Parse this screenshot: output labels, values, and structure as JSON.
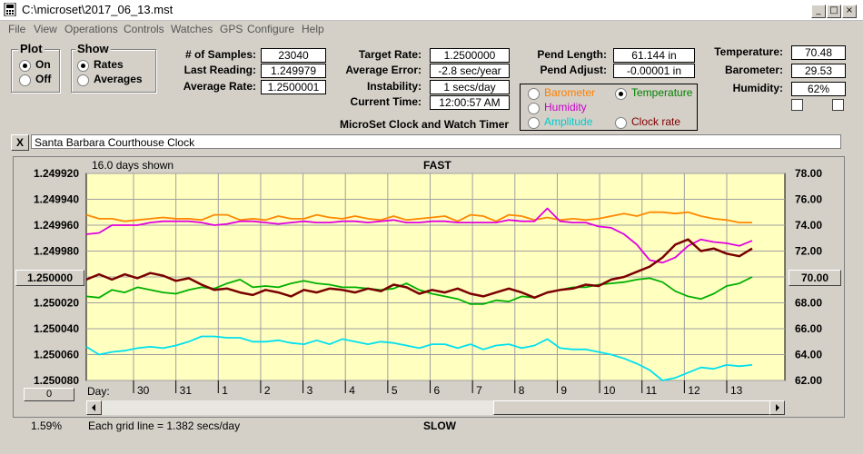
{
  "window": {
    "title": "C:\\microset\\2017_06_13.mst"
  },
  "menu": [
    "File",
    "View",
    "Operations",
    "Controls",
    "Watches",
    "GPS",
    "Configure",
    "Help"
  ],
  "plot_group": {
    "title": "Plot",
    "options": [
      "On",
      "Off"
    ],
    "selected": "On"
  },
  "show_group": {
    "title": "Show",
    "options": [
      "Rates",
      "Averages"
    ],
    "selected": "Rates"
  },
  "stats": {
    "samples_label": "# of Samples:",
    "samples": "23040",
    "last_label": "Last Reading:",
    "last": "1.249979",
    "avg_label": "Average Rate:",
    "avg": "1.2500001",
    "target_label": "Target Rate:",
    "target": "1.2500000",
    "err_label": "Average Error:",
    "err": "-2.8 sec/year",
    "inst_label": "Instability:",
    "inst": "1 secs/day",
    "time_label": "Current Time:",
    "time": "12:00:57 AM",
    "pend_len_label": "Pend Length:",
    "pend_len": "61.144 in",
    "pend_adj_label": "Pend Adjust:",
    "pend_adj": "-0.00001 in",
    "temp_label": "Temperature:",
    "temp": "70.48",
    "baro_label": "Barometer:",
    "baro": "29.53",
    "hum_label": "Humidity:",
    "hum": "62%"
  },
  "app_caption": "MicroSet Clock and Watch Timer",
  "overlay_group": {
    "options": [
      {
        "label": "Barometer",
        "color": "#ff8000",
        "selected": false
      },
      {
        "label": "Temperature",
        "color": "#008000",
        "selected": true
      },
      {
        "label": "Humidity",
        "color": "#cc00cc",
        "selected": false
      },
      {
        "label": "Clock rate",
        "color": "#800000",
        "selected": false
      },
      {
        "label": "Amplitude",
        "color": "#00cccc",
        "selected": false
      }
    ]
  },
  "note": {
    "close": "X",
    "text": "Santa Barbara Courthouse Clock"
  },
  "chart_data": {
    "type": "line",
    "title": "FAST",
    "bottom_title": "SLOW",
    "subtitle": "16.0 days shown",
    "grid_note": "Each grid line = 1.382 secs/day",
    "left_axis": {
      "ticks": [
        "1.249920",
        "1.249940",
        "1.249960",
        "1.249980",
        "1.250000",
        "1.250020",
        "1.250040",
        "1.250060",
        "1.250080"
      ],
      "range": [
        1.24992,
        1.25008
      ]
    },
    "right_axis": {
      "ticks": [
        "78.00",
        "76.00",
        "74.00",
        "72.00",
        "70.00",
        "68.00",
        "66.00",
        "64.00",
        "62.00"
      ],
      "range": [
        78,
        62
      ]
    },
    "center_left_button": "1.250000",
    "center_right_button": "70.00",
    "x_axis_label": "Day:",
    "x_ticks": [
      "30",
      "31",
      "1",
      "2",
      "3",
      "4",
      "5",
      "6",
      "7",
      "8",
      "9",
      "10",
      "11",
      "12",
      "13"
    ],
    "bottom_left_button": "0",
    "bottom_left_percent": "1.59%",
    "grid": true,
    "series": [
      {
        "color": "#ff8800",
        "values": [
          1.249952,
          1.249955,
          1.249955,
          1.249957,
          1.249956,
          1.249955,
          1.249954,
          1.249955,
          1.249955,
          1.249956,
          1.249952,
          1.249952,
          1.249956,
          1.249955,
          1.249956,
          1.249953,
          1.249955,
          1.249955,
          1.249952,
          1.249954,
          1.249955,
          1.249953,
          1.249955,
          1.249956,
          1.249953,
          1.249956,
          1.249955,
          1.249954,
          1.249953,
          1.249957,
          1.249952,
          1.249953,
          1.249957,
          1.249952,
          1.249953,
          1.249956,
          1.249954,
          1.249956,
          1.249955,
          1.249956,
          1.249955,
          1.249953,
          1.249951,
          1.249953,
          1.24995,
          1.24995,
          1.249951,
          1.24995,
          1.249953,
          1.249955,
          1.249956,
          1.249958,
          1.249958
        ]
      },
      {
        "color": "#e000e0",
        "values": [
          1.249967,
          1.249966,
          1.24996,
          1.24996,
          1.24996,
          1.249958,
          1.249957,
          1.249957,
          1.249957,
          1.249958,
          1.24996,
          1.249959,
          1.249957,
          1.249957,
          1.249958,
          1.249959,
          1.249958,
          1.249957,
          1.249958,
          1.249958,
          1.249957,
          1.249957,
          1.249958,
          1.249957,
          1.249956,
          1.249958,
          1.249958,
          1.249957,
          1.249957,
          1.249958,
          1.249958,
          1.249958,
          1.249958,
          1.249956,
          1.249957,
          1.249957,
          1.249947,
          1.249957,
          1.249958,
          1.249958,
          1.249961,
          1.249962,
          1.249967,
          1.249975,
          1.249987,
          1.249989,
          1.249985,
          1.249976,
          1.249971,
          1.249973,
          1.249974,
          1.249976,
          1.249972
        ]
      },
      {
        "color": "#00b000",
        "values": [
          1.250015,
          1.250016,
          1.25001,
          1.250012,
          1.250008,
          1.25001,
          1.250012,
          1.250013,
          1.25001,
          1.250008,
          1.250009,
          1.250005,
          1.250002,
          1.250008,
          1.250007,
          1.250008,
          1.250005,
          1.250003,
          1.250005,
          1.250006,
          1.250008,
          1.250008,
          1.250009,
          1.25001,
          1.250009,
          1.250005,
          1.25001,
          1.250013,
          1.250015,
          1.250017,
          1.250021,
          1.250021,
          1.250018,
          1.250019,
          1.250015,
          1.250016,
          1.250012,
          1.25001,
          1.250008,
          1.250008,
          1.250006,
          1.250005,
          1.250004,
          1.250002,
          1.250001,
          1.250004,
          1.250011,
          1.250015,
          1.250017,
          1.250013,
          1.250007,
          1.250005,
          1.25
        ]
      },
      {
        "color": "#7a0000",
        "values": [
          1.250002,
          1.249998,
          1.250002,
          1.249998,
          1.250001,
          1.249997,
          1.249999,
          1.250003,
          1.250001,
          1.250006,
          1.25001,
          1.250009,
          1.250012,
          1.250014,
          1.25001,
          1.250012,
          1.250015,
          1.25001,
          1.250012,
          1.250009,
          1.25001,
          1.250012,
          1.250009,
          1.250011,
          1.250006,
          1.250008,
          1.250013,
          1.25001,
          1.250012,
          1.250009,
          1.250013,
          1.250015,
          1.250012,
          1.250009,
          1.250012,
          1.250016,
          1.250012,
          1.25001,
          1.250009,
          1.250006,
          1.250007,
          1.250002,
          1.25,
          1.249996,
          1.249992,
          1.249985,
          1.249975,
          1.249971,
          1.24998,
          1.249978,
          1.249982,
          1.249984,
          1.249978
        ]
      },
      {
        "color": "#00e0f0",
        "values": [
          1.250054,
          1.25006,
          1.250058,
          1.250057,
          1.250055,
          1.250054,
          1.250055,
          1.250053,
          1.25005,
          1.250046,
          1.250046,
          1.250047,
          1.250047,
          1.25005,
          1.25005,
          1.250049,
          1.250051,
          1.250052,
          1.250049,
          1.250052,
          1.250048,
          1.25005,
          1.250052,
          1.25005,
          1.250051,
          1.250053,
          1.250055,
          1.250052,
          1.250052,
          1.250055,
          1.250052,
          1.250056,
          1.250053,
          1.250052,
          1.250055,
          1.250053,
          1.250048,
          1.250055,
          1.250056,
          1.250056,
          1.250058,
          1.25006,
          1.250063,
          1.250067,
          1.250072,
          1.25008,
          1.250078,
          1.250074,
          1.25007,
          1.250071,
          1.250068,
          1.250069,
          1.250068
        ]
      }
    ]
  }
}
